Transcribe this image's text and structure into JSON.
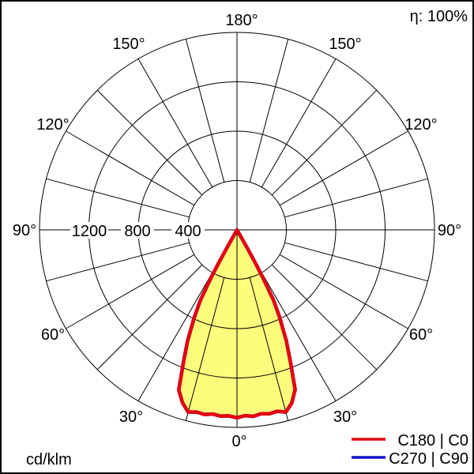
{
  "header": {
    "efficiency": "η: 100%"
  },
  "footer": {
    "unit": "cd/klm"
  },
  "legend": {
    "items": [
      {
        "label": "C180 | C0",
        "color": "#e3000f"
      },
      {
        "label": "C270 | C90",
        "color": "#1414cc"
      }
    ]
  },
  "polar": {
    "angle_labels": [
      {
        "text": "180°"
      },
      {
        "text": "150°"
      },
      {
        "text": "150°"
      },
      {
        "text": "120°"
      },
      {
        "text": "120°"
      },
      {
        "text": "90°"
      },
      {
        "text": "90°"
      },
      {
        "text": "60°"
      },
      {
        "text": "60°"
      },
      {
        "text": "30°"
      },
      {
        "text": "30°"
      },
      {
        "text": "0°"
      }
    ],
    "radial_labels": [
      {
        "text": "1200"
      },
      {
        "text": "800"
      },
      {
        "text": "400"
      }
    ]
  },
  "chart_data": {
    "type": "line",
    "polar": true,
    "units": "cd/klm",
    "efficiency_percent": 100,
    "radial_axis": {
      "ticks": [
        400,
        800,
        1200,
        1600
      ],
      "labeled_ticks": [
        400,
        800,
        1200
      ],
      "max": 1600
    },
    "angular_axis": {
      "unit": "deg",
      "zero_position": "bottom",
      "label_every": 30,
      "grid_every": 15,
      "range": [
        0,
        180
      ]
    },
    "series": [
      {
        "name": "C180 | C0",
        "color": "#e3000f",
        "fill": "#fdfd7d",
        "points": [
          [
            -30,
            0
          ],
          [
            -29.5,
            150
          ],
          [
            -29,
            300
          ],
          [
            -28.5,
            430
          ],
          [
            -27.5,
            640
          ],
          [
            -26,
            790
          ],
          [
            -24,
            985
          ],
          [
            -22,
            1160
          ],
          [
            -20,
            1380
          ],
          [
            -17.5,
            1468
          ],
          [
            -15,
            1528
          ],
          [
            -12.5,
            1512
          ],
          [
            -10,
            1518
          ],
          [
            -7.5,
            1505
          ],
          [
            -5,
            1515
          ],
          [
            -2.5,
            1508
          ],
          [
            0,
            1522
          ],
          [
            2.5,
            1506
          ],
          [
            5,
            1516
          ],
          [
            7.5,
            1502
          ],
          [
            10,
            1512
          ],
          [
            12.5,
            1505
          ],
          [
            15,
            1528
          ],
          [
            17.5,
            1472
          ],
          [
            20,
            1378
          ],
          [
            22,
            1158
          ],
          [
            24,
            982
          ],
          [
            26,
            788
          ],
          [
            27.5,
            638
          ],
          [
            28.5,
            428
          ],
          [
            29,
            298
          ],
          [
            29.5,
            148
          ],
          [
            30,
            0
          ]
        ]
      },
      {
        "name": "C270 | C90",
        "color": "#1414cc",
        "fill": null,
        "points": [
          [
            -30,
            0
          ],
          [
            -29.5,
            150
          ],
          [
            -29,
            300
          ],
          [
            -28.5,
            430
          ],
          [
            -27.5,
            640
          ],
          [
            -26,
            790
          ],
          [
            -24,
            985
          ],
          [
            -22,
            1160
          ],
          [
            -20,
            1380
          ],
          [
            -17.5,
            1468
          ],
          [
            -15,
            1528
          ],
          [
            -12.5,
            1512
          ],
          [
            -10,
            1518
          ],
          [
            -7.5,
            1505
          ],
          [
            -5,
            1515
          ],
          [
            -2.5,
            1508
          ],
          [
            0,
            1522
          ],
          [
            2.5,
            1506
          ],
          [
            5,
            1516
          ],
          [
            7.5,
            1502
          ],
          [
            10,
            1512
          ],
          [
            12.5,
            1505
          ],
          [
            15,
            1528
          ],
          [
            17.5,
            1472
          ],
          [
            20,
            1378
          ],
          [
            22,
            1158
          ],
          [
            24,
            982
          ],
          [
            26,
            788
          ],
          [
            27.5,
            638
          ],
          [
            28.5,
            428
          ],
          [
            29,
            298
          ],
          [
            29.5,
            148
          ],
          [
            30,
            0
          ]
        ]
      }
    ]
  }
}
